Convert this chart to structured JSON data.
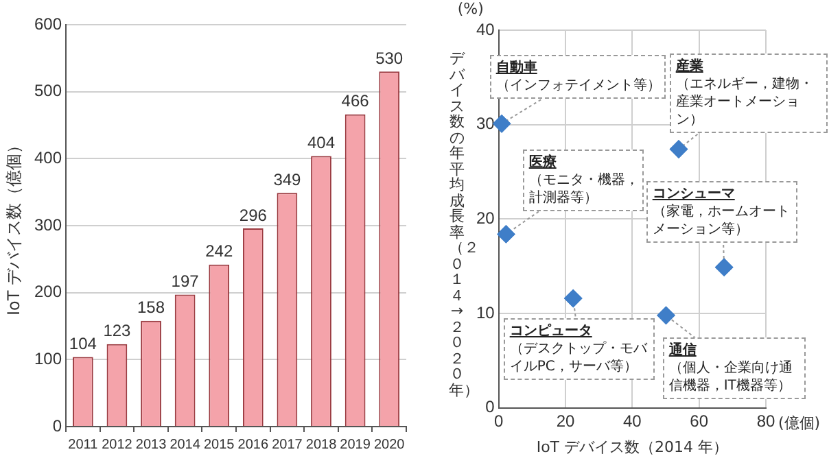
{
  "chart_data": [
    {
      "type": "bar",
      "categories": [
        "2011",
        "2012",
        "2013",
        "2014",
        "2015",
        "2016",
        "2017",
        "2018",
        "2019",
        "2020"
      ],
      "values": [
        104,
        123,
        158,
        197,
        242,
        296,
        349,
        404,
        466,
        530
      ],
      "color": "#f4a3aa",
      "ylim": [
        0,
        600
      ],
      "yticks": [
        0,
        100,
        200,
        300,
        400,
        500,
        600
      ],
      "grid": "y",
      "ylabel": "IoT デバイス数（億個）",
      "data_labels": true
    },
    {
      "type": "scatter",
      "x": [
        0.9,
        2.2,
        22.3,
        50.1,
        53.9,
        67.5
      ],
      "values": [
        30.1,
        18.4,
        11.6,
        9.8,
        27.4,
        14.9
      ],
      "color": "#3f7ec8",
      "marker": "diamond",
      "xlim": [
        0,
        80
      ],
      "xticks": [
        0,
        20,
        40,
        60,
        80
      ],
      "ylim": [
        0,
        40
      ],
      "yticks": [
        0,
        10,
        20,
        30,
        40
      ],
      "grid": true,
      "xlabel": "IoT デバイス数（2014 年）",
      "ylabel": "デバイス数の年平均成長率（２０１４→２０２０年）",
      "annotations": [
        "(%)",
        "(億個)",
        "自動車",
        {
          "text": "（インフォテイメント等）",
          "x": 0.9,
          "y": 30.1
        },
        "医療",
        {
          "text": "（モニタ・機器，計測器等）",
          "x": 2.2,
          "y": 18.4
        },
        "コンピュータ",
        {
          "text": "（デスクトップ・モバイルPC，サーバ等）",
          "x": 22.3,
          "y": 11.6
        },
        "通信",
        {
          "text": "（個人・企業向け通信機器，IT機器等）",
          "x": 50.1,
          "y": 9.8
        },
        "産業",
        {
          "text": "（エネルギー，建物・産業オートメーション）",
          "x": 53.9,
          "y": 27.4
        },
        "コンシューマ",
        {
          "text": "（家電，ホームオートメーション等）",
          "x": 67.5,
          "y": 14.9
        }
      ]
    }
  ]
}
